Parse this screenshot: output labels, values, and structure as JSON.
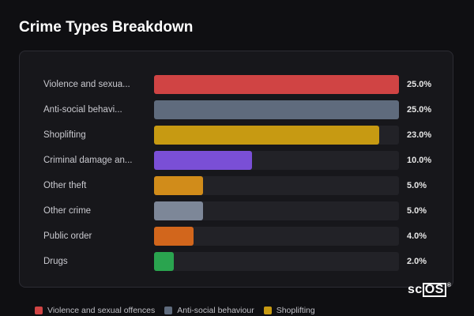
{
  "title": "Crime Types Breakdown",
  "chart_data": {
    "type": "bar",
    "orientation": "horizontal",
    "title": "Crime Types Breakdown",
    "categories": [
      "Violence and sexual offences",
      "Anti-social behaviour",
      "Shoplifting",
      "Criminal damage and arson",
      "Other theft",
      "Other crime",
      "Public order",
      "Drugs"
    ],
    "display_labels": [
      "Violence and sexua...",
      "Anti-social behavi...",
      "Shoplifting",
      "Criminal damage an...",
      "Other theft",
      "Other crime",
      "Public order",
      "Drugs"
    ],
    "values": [
      25.0,
      25.0,
      23.0,
      10.0,
      5.0,
      5.0,
      4.0,
      2.0
    ],
    "value_labels": [
      "25.0%",
      "25.0%",
      "23.0%",
      "10.0%",
      "5.0%",
      "5.0%",
      "4.0%",
      "2.0%"
    ],
    "max": 25.0,
    "colors": [
      "#d04444",
      "#5f6b7d",
      "#c79a12",
      "#7a4fd6",
      "#d18c1a",
      "#7d8798",
      "#d2661c",
      "#2aa44f"
    ],
    "legend_entries": [
      "Violence and sexual offences",
      "Anti-social behaviour",
      "Shoplifting"
    ],
    "legend_placement": "bottom",
    "grid": false
  },
  "logo_text": "sc",
  "logo_box_text": "OS",
  "logo_reg": "®"
}
